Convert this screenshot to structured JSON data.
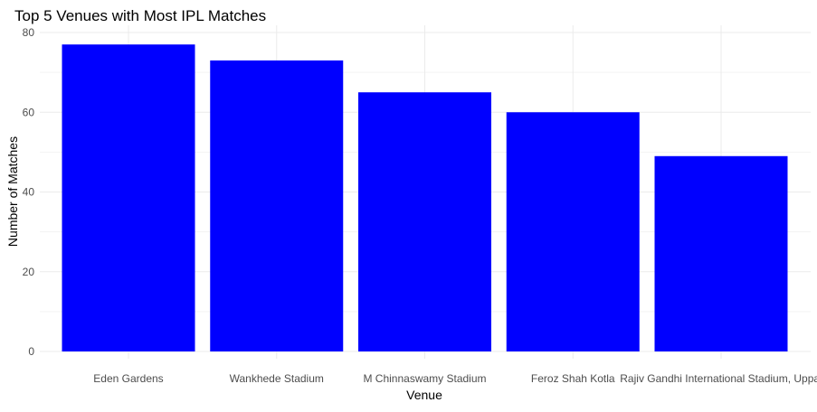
{
  "chart_data": {
    "type": "bar",
    "title": "Top 5 Venues with Most IPL Matches",
    "xlabel": "Venue",
    "ylabel": "Number of Matches",
    "categories": [
      "Eden Gardens",
      "Wankhede Stadium",
      "M Chinnaswamy Stadium",
      "Feroz Shah Kotla",
      "Rajiv Gandhi International Stadium, Uppal"
    ],
    "values": [
      77,
      73,
      65,
      60,
      49
    ],
    "ylim": [
      0,
      80
    ],
    "yticks": [
      0,
      20,
      40,
      60,
      80
    ],
    "grid": true,
    "legend": "none",
    "bar_color": "#0000FF"
  },
  "colors": {
    "background": "#FFFFFF",
    "grid_major": "#EBEBEB",
    "grid_minor": "#F3F3F3",
    "text": "#000000",
    "tick_text": "#4D4D4D"
  }
}
